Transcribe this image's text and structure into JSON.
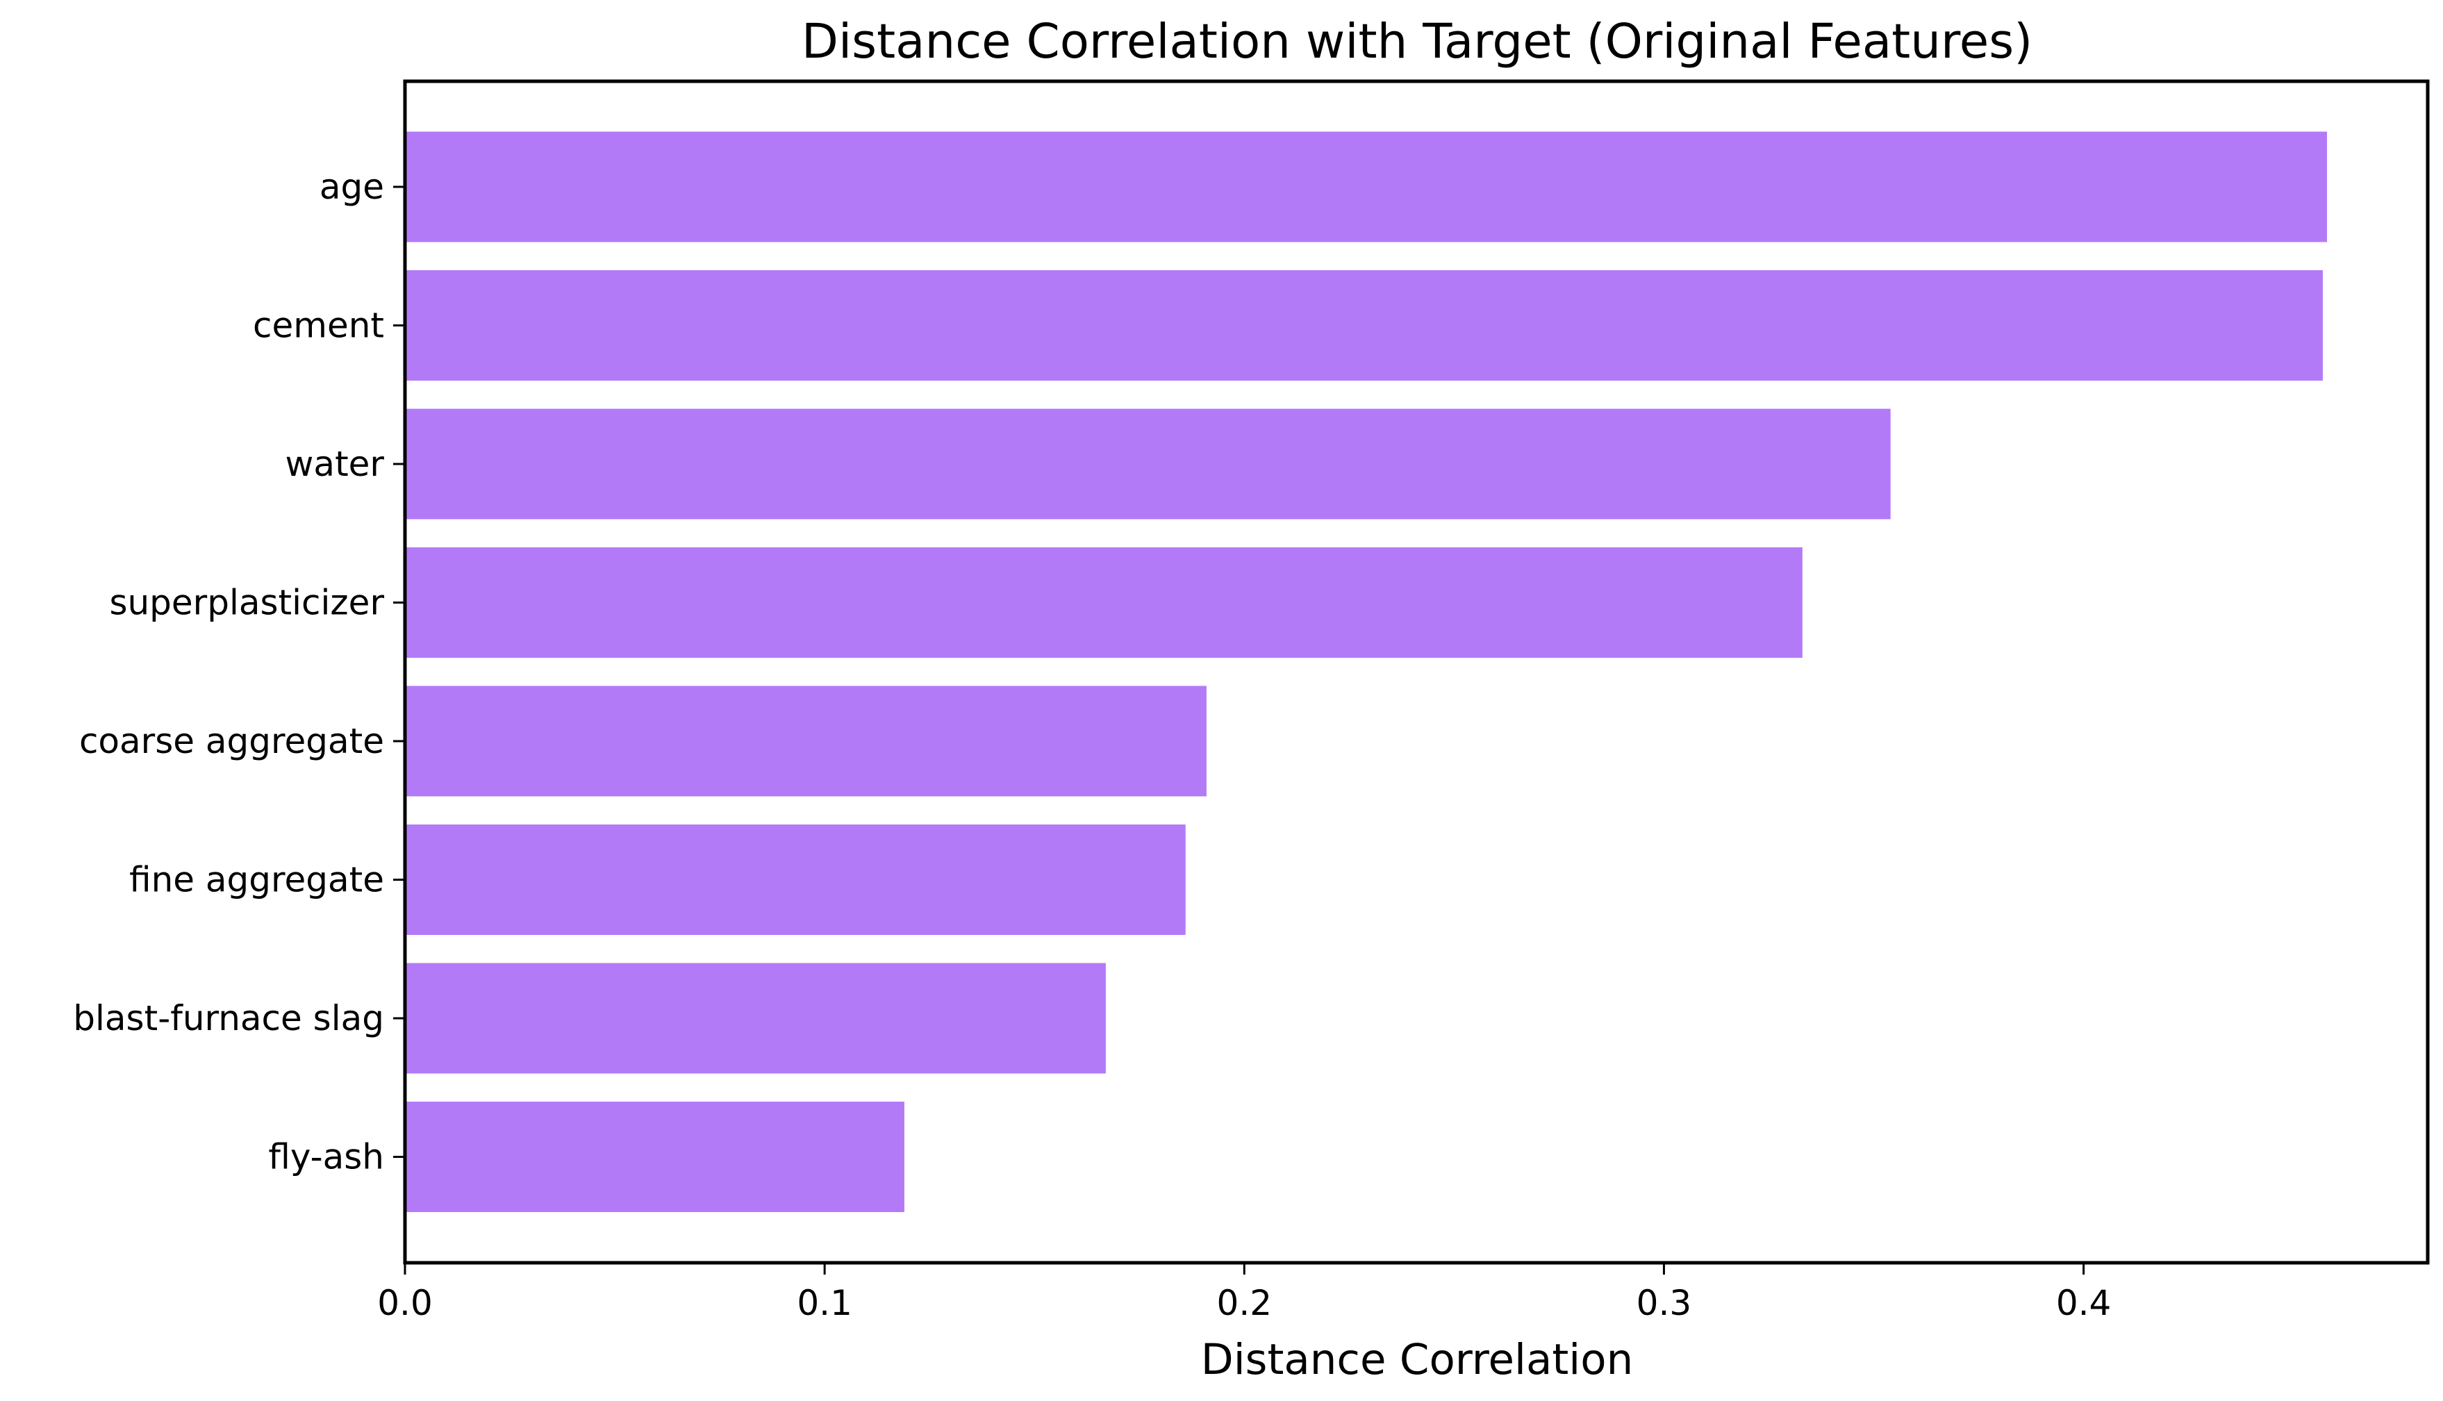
{
  "chart_data": {
    "type": "bar",
    "orientation": "horizontal",
    "title": "Distance Correlation with Target (Original Features)",
    "xlabel": "Distance Correlation",
    "ylabel": "",
    "categories": [
      "age",
      "cement",
      "water",
      "superplasticizer",
      "coarse aggregate",
      "fine aggregate",
      "blast-furnace slag",
      "fly-ash"
    ],
    "values": [
      0.458,
      0.457,
      0.354,
      0.333,
      0.191,
      0.186,
      0.167,
      0.119
    ],
    "xlim": [
      0,
      0.482
    ],
    "xticks": [
      0.0,
      0.1,
      0.2,
      0.3,
      0.4
    ],
    "xtick_labels": [
      "0.0",
      "0.1",
      "0.2",
      "0.3",
      "0.4"
    ],
    "grid": false,
    "legend": "none",
    "bar_color": "#b37af8"
  }
}
